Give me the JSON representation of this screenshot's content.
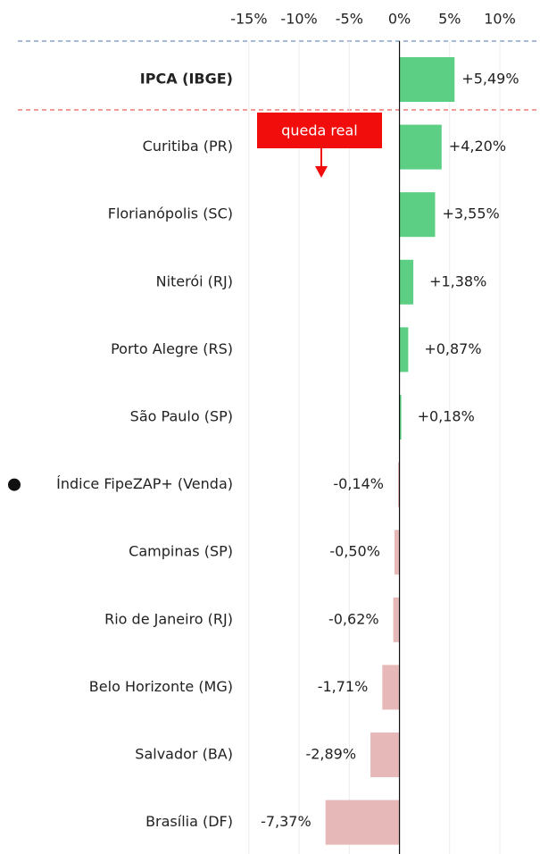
{
  "chart_data": {
    "type": "hbar",
    "annotation": "queda real",
    "categories": [
      "IPCA (IBGE)",
      "Curitiba (PR)",
      "Florianópolis (SC)",
      "Niterói (RJ)",
      "Porto Alegre (RS)",
      "São Paulo (SP)",
      "Índice FipeZAP+ (Venda)",
      "Campinas (SP)",
      "Rio de Janeiro (RJ)",
      "Belo Horizonte (MG)",
      "Salvador (BA)",
      "Brasília (DF)"
    ],
    "values": [
      5.49,
      4.2,
      3.55,
      1.38,
      0.87,
      0.18,
      -0.14,
      -0.5,
      -0.62,
      -1.71,
      -2.89,
      -7.37
    ],
    "value_labels": [
      "+5,49%",
      "+4,20%",
      "+3,55%",
      "+1,38%",
      "+0,87%",
      "+0,18%",
      "-0,14%",
      "-0,50%",
      "-0,62%",
      "-1,71%",
      "-2,89%",
      "-7,37%"
    ],
    "colors": [
      "#5ccf85",
      "#5ccf85",
      "#5ccf85",
      "#5ccf85",
      "#5ccf85",
      "#5ccf85",
      "#e6b8b8",
      "#e6b8b8",
      "#e6b8b8",
      "#e6b8b8",
      "#e6b8b8",
      "#e6b8b8"
    ],
    "xlim": [
      -16.5,
      14
    ],
    "xticks": [
      {
        "value": -15,
        "label": "-15%"
      },
      {
        "value": -10,
        "label": "-10%"
      },
      {
        "value": -5,
        "label": "-5%"
      },
      {
        "value": 0,
        "label": "0%"
      },
      {
        "value": 5,
        "label": "5%"
      },
      {
        "value": 10,
        "label": "10%"
      }
    ],
    "grid": true
  }
}
